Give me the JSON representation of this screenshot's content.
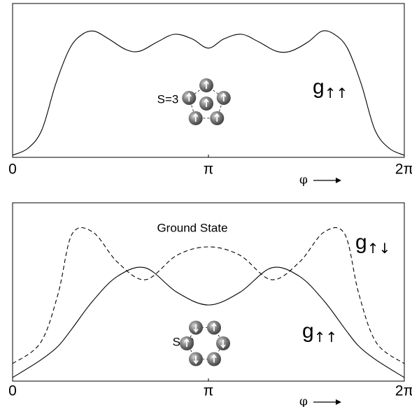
{
  "chart_data": [
    {
      "type": "line",
      "xlabel": "φ",
      "x": [
        0,
        0.247,
        0.471,
        0.694,
        0.92,
        1.12,
        1.31,
        1.54,
        1.82,
        2.04,
        2.32,
        2.6,
        2.88,
        3.14,
        3.39,
        3.67,
        3.95,
        4.23,
        4.46,
        4.74,
        4.96,
        5.16,
        5.37,
        5.59,
        5.81,
        6.04,
        6.28
      ],
      "series": [
        {
          "color": "#000000",
          "dashed": false,
          "values": [
            0.014,
            0.059,
            0.18,
            0.48,
            0.71,
            0.8,
            0.82,
            0.77,
            0.7,
            0.69,
            0.75,
            0.8,
            0.77,
            0.71,
            0.77,
            0.8,
            0.75,
            0.69,
            0.69,
            0.75,
            0.82,
            0.8,
            0.71,
            0.48,
            0.18,
            0.059,
            0.014
          ]
        }
      ],
      "xlim": [
        0,
        6.2832
      ],
      "ylim": [
        0,
        1
      ],
      "xticks": [
        0,
        {
          "value": 3.1416,
          "label": "π"
        },
        {
          "value": 6.2832,
          "label": "2π"
        }
      ],
      "annotations": [
        {
          "text": "S=3"
        },
        {
          "symbol": "g",
          "subscript": "↑↑"
        }
      ]
    },
    {
      "type": "line",
      "xlabel": "φ",
      "x": [
        0,
        0.449,
        0.73,
        0.953,
        1.29,
        1.683,
        2.132,
        2.637,
        3.142,
        3.646,
        4.151,
        4.6,
        4.993,
        5.329,
        5.553,
        5.834,
        6.283
      ],
      "series": [
        {
          "color": "#000000",
          "dashed": false,
          "values": [
            0.02,
            0.118,
            0.196,
            0.294,
            0.451,
            0.588,
            0.635,
            0.498,
            0.427,
            0.498,
            0.635,
            0.588,
            0.451,
            0.294,
            0.196,
            0.118,
            0.02
          ]
        },
        {
          "color": "#000000",
          "dashed": true,
          "values": [
            0.098,
            0.216,
            0.49,
            0.824,
            0.835,
            0.667,
            0.569,
            0.706,
            0.753,
            0.706,
            0.569,
            0.667,
            0.835,
            0.824,
            0.49,
            0.216,
            0.098
          ]
        }
      ],
      "xlim": [
        0,
        6.2832
      ],
      "ylim": [
        0,
        1
      ],
      "xticks": [
        0,
        {
          "value": 3.1416,
          "label": "π"
        },
        {
          "value": 6.2832,
          "label": "2π"
        }
      ],
      "annotations": [
        {
          "text": "Ground State"
        },
        {
          "symbol": "g",
          "subscript": "↑↓"
        },
        {
          "symbol": "g",
          "subscript": "↑↑"
        },
        {
          "text": "S=0"
        }
      ]
    }
  ]
}
